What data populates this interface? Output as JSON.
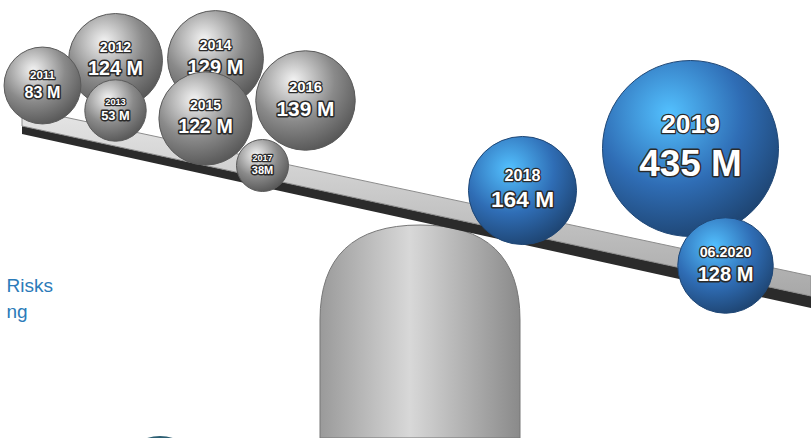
{
  "chart_data": {
    "type": "bubble",
    "categories": [
      "2011",
      "2012",
      "2013",
      "2014",
      "2015",
      "2016",
      "2017",
      "2018",
      "2019",
      "06.2020"
    ],
    "values": [
      83,
      124,
      53,
      129,
      122,
      139,
      38,
      164,
      435,
      128
    ],
    "value_labels": [
      "83 M",
      "124 M",
      "53 M",
      "129 M",
      "122 M",
      "139 M",
      "38M",
      "164 M",
      "435 M",
      "128 M"
    ],
    "colors": [
      "#8a8a8a",
      "#8a8a8a",
      "#8a8a8a",
      "#8a8a8a",
      "#8a8a8a",
      "#8a8a8a",
      "#8a8a8a",
      "#2f6db5",
      "#2f6db5",
      "#2f6db5"
    ],
    "data_labels": true,
    "tick_labels": false,
    "annotations": [
      "Risks",
      "ng"
    ]
  }
}
